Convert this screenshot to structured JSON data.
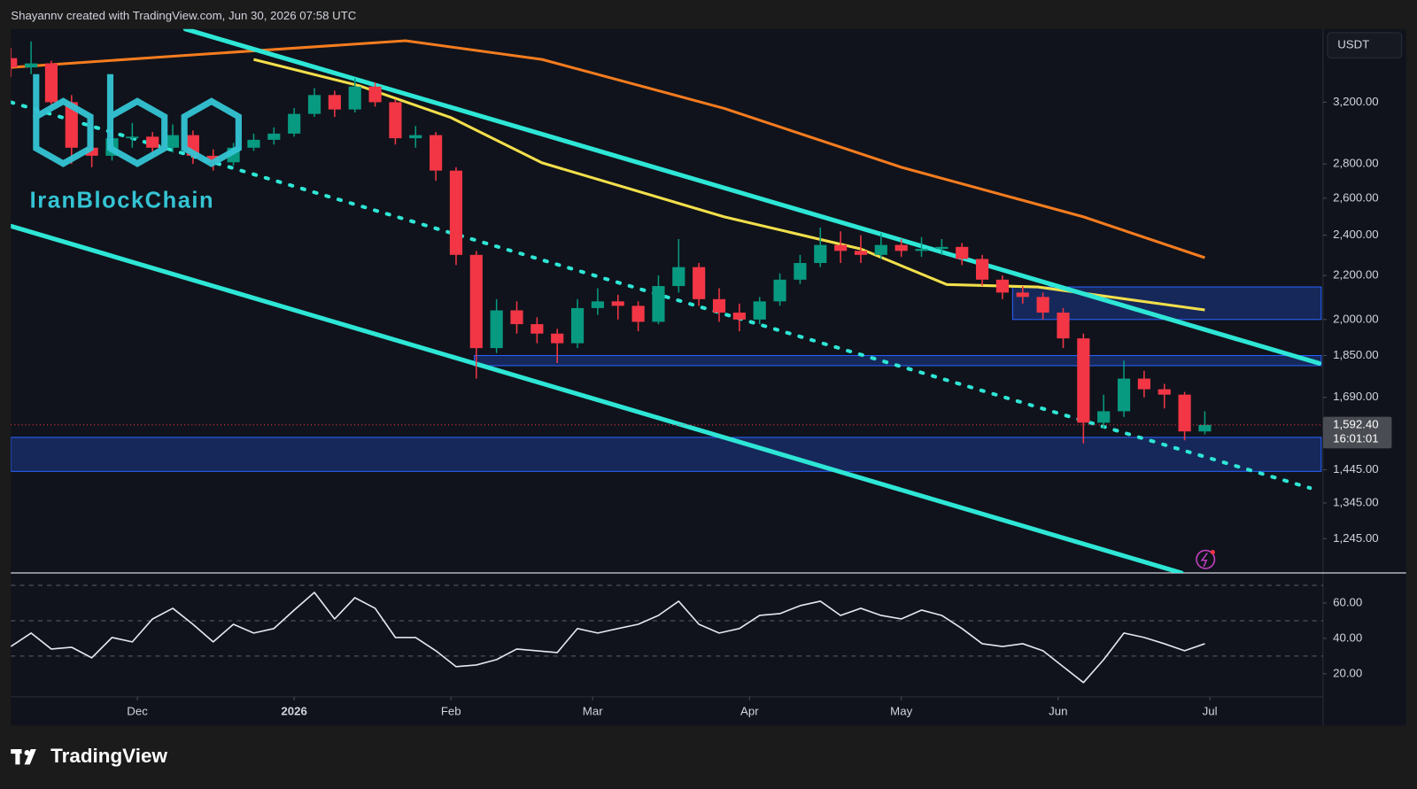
{
  "header": "Shayannv created with TradingView.com, Jun 30, 2026 07:58 UTC",
  "watermark": "IranBlockChain",
  "footer_brand": "TradingView",
  "chart_data": [
    {
      "type": "candlestick",
      "currency": "USDT",
      "log_scale": true,
      "grid": false,
      "up_color": "#089981",
      "down_color": "#f23645",
      "x": [
        0,
        4,
        8,
        12,
        16,
        20,
        24,
        28,
        32,
        36,
        40,
        44,
        48,
        52,
        56,
        60,
        64,
        68,
        72,
        76,
        80,
        84,
        88,
        92,
        96,
        100,
        104,
        108,
        112,
        116,
        120,
        124,
        128,
        132,
        136,
        140,
        144,
        148,
        152,
        156,
        160,
        164,
        168,
        172,
        176,
        180,
        184,
        188,
        192,
        196,
        200,
        204,
        208,
        212,
        216,
        220,
        224,
        228,
        232,
        236
      ],
      "open": [
        3520,
        3450,
        3480,
        3200,
        2900,
        2850,
        2960,
        2970,
        2900,
        2980,
        2850,
        2810,
        2900,
        2950,
        2990,
        3120,
        3250,
        3150,
        3310,
        3200,
        2960,
        2980,
        2760,
        2300,
        1880,
        2040,
        1980,
        1940,
        1900,
        2050,
        2080,
        2060,
        1990,
        2150,
        2240,
        2090,
        2030,
        2000,
        2080,
        2180,
        2260,
        2350,
        2320,
        2300,
        2350,
        2320,
        2330,
        2340,
        2280,
        2180,
        2120,
        2100,
        2030,
        1920,
        1600,
        1640,
        1760,
        1720,
        1700,
        1570
      ],
      "high": [
        3600,
        3650,
        3500,
        3250,
        2980,
        3020,
        3060,
        3000,
        3050,
        3010,
        2890,
        2930,
        2990,
        3030,
        3160,
        3300,
        3280,
        3370,
        3340,
        3220,
        3040,
        3000,
        2780,
        2320,
        2090,
        2080,
        2010,
        1960,
        2090,
        2140,
        2110,
        2080,
        2200,
        2380,
        2260,
        2140,
        2070,
        2100,
        2210,
        2300,
        2440,
        2420,
        2400,
        2410,
        2380,
        2390,
        2380,
        2360,
        2300,
        2200,
        2150,
        2120,
        2050,
        1940,
        1700,
        1830,
        1790,
        1740,
        1710,
        1640
      ],
      "low": [
        3380,
        3400,
        3150,
        2800,
        2780,
        2820,
        2900,
        2850,
        2870,
        2800,
        2760,
        2790,
        2880,
        2920,
        2970,
        3100,
        3100,
        3130,
        3170,
        2920,
        2900,
        2700,
        2250,
        1760,
        1860,
        1940,
        1900,
        1820,
        1880,
        2020,
        2000,
        1950,
        1980,
        2120,
        2060,
        1990,
        1950,
        1980,
        2060,
        2160,
        2240,
        2260,
        2260,
        2280,
        2290,
        2290,
        2300,
        2250,
        2150,
        2090,
        2070,
        2000,
        1880,
        1530,
        1580,
        1620,
        1690,
        1650,
        1540,
        1560
      ],
      "close": [
        3450,
        3480,
        3200,
        2900,
        2850,
        2960,
        2970,
        2900,
        2980,
        2850,
        2810,
        2900,
        2950,
        2990,
        3120,
        3250,
        3150,
        3310,
        3200,
        2960,
        2980,
        2760,
        2300,
        1880,
        2040,
        1980,
        1940,
        1900,
        2050,
        2080,
        2060,
        1990,
        2150,
        2240,
        2090,
        2030,
        2000,
        2080,
        2180,
        2260,
        2350,
        2320,
        2300,
        2350,
        2320,
        2330,
        2340,
        2280,
        2180,
        2120,
        2100,
        2030,
        1920,
        1600,
        1640,
        1760,
        1720,
        1700,
        1570,
        1592.4
      ],
      "xlim": [
        0,
        259
      ],
      "xticks": [
        {
          "value": 25,
          "label": "Dec"
        },
        {
          "value": 56,
          "label": "2026"
        },
        {
          "value": 87,
          "label": "Feb"
        },
        {
          "value": 115,
          "label": "Mar"
        },
        {
          "value": 146,
          "label": "Apr"
        },
        {
          "value": 176,
          "label": "May"
        },
        {
          "value": 207,
          "label": "Jun"
        },
        {
          "value": 237,
          "label": "Jul"
        }
      ],
      "ylim": [
        1156,
        3749
      ],
      "yticks": [
        {
          "value": 3200,
          "label": "3,200.00"
        },
        {
          "value": 2800,
          "label": "2,800.00"
        },
        {
          "value": 2600,
          "label": "2,600.00"
        },
        {
          "value": 2400,
          "label": "2,400.00"
        },
        {
          "value": 2200,
          "label": "2,200.00"
        },
        {
          "value": 2000,
          "label": "2,000.00"
        },
        {
          "value": 1850,
          "label": "1,850.00"
        },
        {
          "value": 1690,
          "label": "1,690.00"
        },
        {
          "value": 1445,
          "label": "1,445.00"
        },
        {
          "value": 1345,
          "label": "1,345.00"
        },
        {
          "value": 1245,
          "label": "1,245.00"
        }
      ],
      "last_price": {
        "value": 1592.4,
        "label": "1,592.40"
      },
      "countdown": "16:01:01",
      "moving_averages": [
        {
          "color": "#f57c1f",
          "x": [
            0,
            34,
            78,
            105,
            141,
            176,
            212,
            236
          ],
          "values": [
            3450,
            3540,
            3655,
            3510,
            3157,
            2780,
            2497,
            2286
          ]
        },
        {
          "color": "#f2df4b",
          "x": [
            48,
            69,
            87,
            105,
            141,
            168,
            185,
            203,
            236
          ],
          "values": [
            3510,
            3315,
            3095,
            2807,
            2497,
            2330,
            2157,
            2146,
            2042
          ]
        }
      ],
      "trendlines": [
        {
          "color": "#2ee6d6",
          "dashed": false,
          "x": [
            34.5,
            258.6
          ],
          "y": [
            3749,
            1819
          ]
        },
        {
          "color": "#2ee6d6",
          "dashed": false,
          "x": [
            0,
            231.4
          ],
          "y": [
            2448,
            1156
          ]
        },
        {
          "color": "#2ee6d6",
          "dashed": true,
          "x": [
            0,
            256.8
          ],
          "y": [
            3200,
            1389
          ]
        }
      ],
      "zones": [
        {
          "x": [
            198,
            259
          ],
          "y": [
            2000,
            2146
          ]
        },
        {
          "x": [
            91.6,
            259
          ],
          "y": [
            1810,
            1850
          ]
        },
        {
          "x": [
            0,
            259
          ],
          "y": [
            1440,
            1550
          ]
        }
      ]
    },
    {
      "type": "line",
      "color": "#e4e6f2",
      "x": [
        0,
        4,
        8,
        12,
        16,
        20,
        24,
        28,
        32,
        36,
        40,
        44,
        48,
        52,
        56,
        60,
        64,
        68,
        72,
        76,
        80,
        84,
        88,
        92,
        96,
        100,
        104,
        108,
        112,
        116,
        120,
        124,
        128,
        132,
        136,
        140,
        144,
        148,
        152,
        156,
        160,
        164,
        168,
        172,
        176,
        180,
        184,
        188,
        192,
        196,
        200,
        204,
        208,
        212,
        216,
        220,
        224,
        228,
        232,
        236
      ],
      "values": [
        35.4,
        43,
        34,
        35,
        29,
        40.5,
        38,
        51,
        57,
        48,
        38,
        48,
        43,
        45.6,
        56,
        66,
        51,
        63,
        57,
        40.5,
        40.5,
        33,
        24,
        25,
        28,
        34,
        33,
        32,
        45.6,
        43,
        45.6,
        48,
        53,
        61,
        48,
        43,
        45.6,
        53,
        54,
        58.5,
        61,
        53,
        57,
        53,
        51,
        56,
        53,
        45.6,
        37,
        35.4,
        37,
        33,
        24,
        15,
        28,
        43,
        40.5,
        37,
        33,
        37
      ],
      "xlim": [
        0,
        259
      ],
      "ylim": [
        7,
        77
      ],
      "yticks": [
        {
          "value": 60,
          "label": "60.00"
        },
        {
          "value": 40,
          "label": "40.00"
        },
        {
          "value": 20,
          "label": "20.00"
        }
      ],
      "bands": [
        70,
        50,
        30
      ]
    }
  ]
}
